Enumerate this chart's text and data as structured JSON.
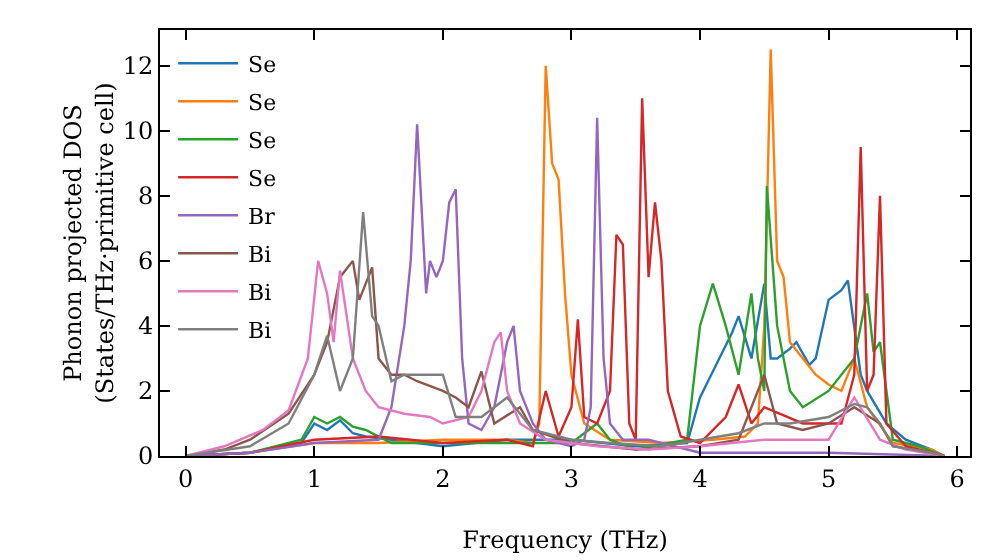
{
  "chart_data": {
    "type": "line",
    "xlabel": "Frequency (THz)",
    "ylabel": "Phonon projected DOS\n(States/THz·primitive cell)",
    "xlim": [
      -0.2,
      6.1
    ],
    "ylim": [
      0,
      13.1
    ],
    "xticks": [
      0,
      1,
      2,
      3,
      4,
      5,
      6
    ],
    "yticks": [
      0,
      2,
      4,
      6,
      8,
      10,
      12
    ],
    "grid": false,
    "legend": "top left",
    "marker": "none",
    "line_style": "solid",
    "series": [
      {
        "name": "Se",
        "color": "#1f77b4",
        "x": [
          0,
          0.5,
          0.9,
          1.0,
          1.1,
          1.2,
          1.3,
          1.4,
          1.6,
          2.0,
          2.5,
          3.0,
          3.5,
          3.9,
          4.0,
          4.05,
          4.15,
          4.25,
          4.3,
          4.4,
          4.5,
          4.55,
          4.6,
          4.7,
          4.75,
          4.85,
          4.9,
          5.0,
          5.1,
          5.15,
          5.25,
          5.3,
          5.45,
          5.6,
          5.8,
          5.9
        ],
        "values": [
          0,
          0.1,
          0.4,
          1.0,
          0.8,
          1.1,
          0.7,
          0.6,
          0.5,
          0.3,
          0.5,
          0.5,
          0.3,
          0.4,
          1.8,
          2.2,
          3,
          3.8,
          4.3,
          3,
          5.3,
          3,
          3,
          3.3,
          3.5,
          2.8,
          3,
          4.8,
          5.1,
          5.4,
          2.5,
          2,
          1,
          0.5,
          0.2,
          0
        ]
      },
      {
        "name": "Se",
        "color": "#ff7f0e",
        "x": [
          0,
          0.5,
          1.0,
          1.5,
          2.0,
          2.5,
          2.7,
          2.75,
          2.8,
          2.85,
          2.9,
          2.95,
          3.0,
          3.1,
          3.3,
          3.7,
          4.1,
          4.35,
          4.45,
          4.5,
          4.55,
          4.6,
          4.65,
          4.7,
          4.8,
          4.9,
          5.0,
          5.1,
          5.2,
          5.3,
          5.5,
          5.8,
          5.9
        ],
        "values": [
          0,
          0.1,
          0.4,
          0.4,
          0.5,
          0.5,
          0.4,
          1,
          12,
          9,
          8.5,
          5,
          2.5,
          1,
          0.5,
          0.4,
          0.5,
          0.6,
          1,
          4,
          12.5,
          6,
          5.5,
          3.5,
          3,
          2.5,
          2.2,
          2,
          3,
          1.5,
          0.4,
          0.2,
          0
        ]
      },
      {
        "name": "Se",
        "color": "#2ca02c",
        "x": [
          0,
          0.5,
          0.9,
          1.0,
          1.1,
          1.2,
          1.3,
          1.4,
          1.6,
          2.0,
          2.5,
          3.0,
          3.2,
          3.3,
          3.5,
          3.9,
          4.0,
          4.1,
          4.2,
          4.3,
          4.4,
          4.45,
          4.5,
          4.52,
          4.6,
          4.7,
          4.8,
          5.0,
          5.2,
          5.3,
          5.35,
          5.4,
          5.5,
          5.7,
          5.9
        ],
        "values": [
          0,
          0.1,
          0.5,
          1.2,
          1.0,
          1.2,
          0.9,
          0.8,
          0.4,
          0.4,
          0.4,
          0.4,
          1.0,
          0.5,
          0.2,
          0.5,
          4,
          5.3,
          4,
          2.5,
          5,
          3,
          2,
          8.3,
          4,
          2,
          1.5,
          2,
          3,
          5,
          3.2,
          3.5,
          0.5,
          0.3,
          0
        ]
      },
      {
        "name": "Se",
        "color": "#d62728",
        "x": [
          0,
          0.5,
          1.0,
          1.5,
          2.0,
          2.5,
          2.7,
          2.8,
          2.9,
          3.0,
          3.05,
          3.1,
          3.2,
          3.3,
          3.35,
          3.4,
          3.45,
          3.5,
          3.55,
          3.6,
          3.65,
          3.7,
          3.75,
          3.85,
          4.0,
          4.2,
          4.3,
          4.4,
          4.5,
          4.8,
          5.1,
          5.2,
          5.25,
          5.3,
          5.35,
          5.4,
          5.45,
          5.6,
          5.8,
          5.9
        ],
        "values": [
          0,
          0.1,
          0.5,
          0.6,
          0.4,
          0.5,
          0.3,
          2,
          0.6,
          1.5,
          4.2,
          1.2,
          1,
          2,
          6.8,
          6.5,
          1,
          0.5,
          11,
          5.5,
          7.8,
          6,
          2,
          0.6,
          0.4,
          1.2,
          2.2,
          1,
          1.5,
          1,
          1,
          2.5,
          9.5,
          2,
          2.5,
          8,
          1,
          0.3,
          0.1,
          0
        ]
      },
      {
        "name": "Br",
        "color": "#9467bd",
        "x": [
          0,
          0.5,
          1.0,
          1.5,
          1.6,
          1.7,
          1.75,
          1.8,
          1.87,
          1.9,
          1.95,
          2.0,
          2.05,
          2.1,
          2.15,
          2.2,
          2.3,
          2.4,
          2.5,
          2.55,
          2.6,
          2.7,
          2.8,
          3.0,
          3.1,
          3.15,
          3.2,
          3.25,
          3.3,
          3.4,
          3.6,
          3.8,
          4.0,
          5.0,
          5.9
        ],
        "values": [
          0,
          0.1,
          0.4,
          0.5,
          1.5,
          4,
          6,
          10.2,
          5,
          6,
          5.5,
          6,
          7.8,
          8.2,
          3,
          1,
          0.8,
          1.5,
          3.5,
          4,
          2,
          1,
          0.5,
          0.3,
          0.5,
          1.5,
          10.4,
          3,
          1,
          0.5,
          0.5,
          0.3,
          0.1,
          0.1,
          0
        ]
      },
      {
        "name": "Bi",
        "color": "#8c564b",
        "x": [
          0,
          0.3,
          0.5,
          0.8,
          1.0,
          1.1,
          1.2,
          1.3,
          1.35,
          1.45,
          1.5,
          1.6,
          1.7,
          1.8,
          2.0,
          2.1,
          2.2,
          2.3,
          2.4,
          2.6,
          2.7,
          3.0,
          3.5,
          4.0,
          4.3,
          4.5,
          4.6,
          4.8,
          5.0,
          5.2,
          5.4,
          5.5,
          5.8,
          5.9
        ],
        "values": [
          0,
          0.2,
          0.5,
          1.3,
          2.5,
          3.5,
          5.5,
          6,
          4.8,
          5.8,
          3,
          2.5,
          2.5,
          2.3,
          2,
          1.8,
          1.5,
          2.6,
          1,
          1.5,
          0.8,
          0.4,
          0.2,
          0.3,
          0.5,
          2.5,
          1,
          0.8,
          1,
          1.5,
          1,
          0.3,
          0.1,
          0
        ]
      },
      {
        "name": "Bi",
        "color": "#e377c2",
        "x": [
          0,
          0.3,
          0.6,
          0.8,
          0.95,
          1.03,
          1.1,
          1.15,
          1.2,
          1.3,
          1.4,
          1.5,
          1.7,
          1.9,
          2.0,
          2.2,
          2.3,
          2.4,
          2.45,
          2.5,
          2.6,
          2.8,
          3.2,
          3.6,
          4.0,
          4.5,
          5.0,
          5.2,
          5.4,
          5.6,
          5.9
        ],
        "values": [
          0,
          0.3,
          0.8,
          1.4,
          3,
          6,
          5,
          3.5,
          5.7,
          3,
          2,
          1.5,
          1.3,
          1.2,
          1,
          1.2,
          2,
          3.5,
          3.8,
          2,
          1,
          0.5,
          0.3,
          0.2,
          0.3,
          0.5,
          0.5,
          1.8,
          0.5,
          0.2,
          0
        ]
      },
      {
        "name": "Bi",
        "color": "#7f7f7f",
        "x": [
          0,
          0.5,
          0.8,
          1.0,
          1.1,
          1.2,
          1.3,
          1.38,
          1.45,
          1.5,
          1.6,
          1.7,
          1.8,
          2.0,
          2.1,
          2.3,
          2.5,
          2.7,
          3.0,
          3.3,
          3.7,
          4.3,
          4.5,
          4.7,
          5.0,
          5.2,
          5.3,
          5.4,
          5.5,
          5.8,
          5.9
        ],
        "values": [
          0,
          0.3,
          1,
          2.5,
          3.7,
          2,
          3,
          7.5,
          4.3,
          4,
          2.3,
          2.5,
          2.5,
          2.5,
          1.2,
          1.2,
          1.8,
          0.8,
          0.5,
          0.4,
          0.3,
          0.7,
          1,
          1,
          1.2,
          1.6,
          1.5,
          1,
          0.3,
          0.1,
          0
        ]
      }
    ]
  }
}
